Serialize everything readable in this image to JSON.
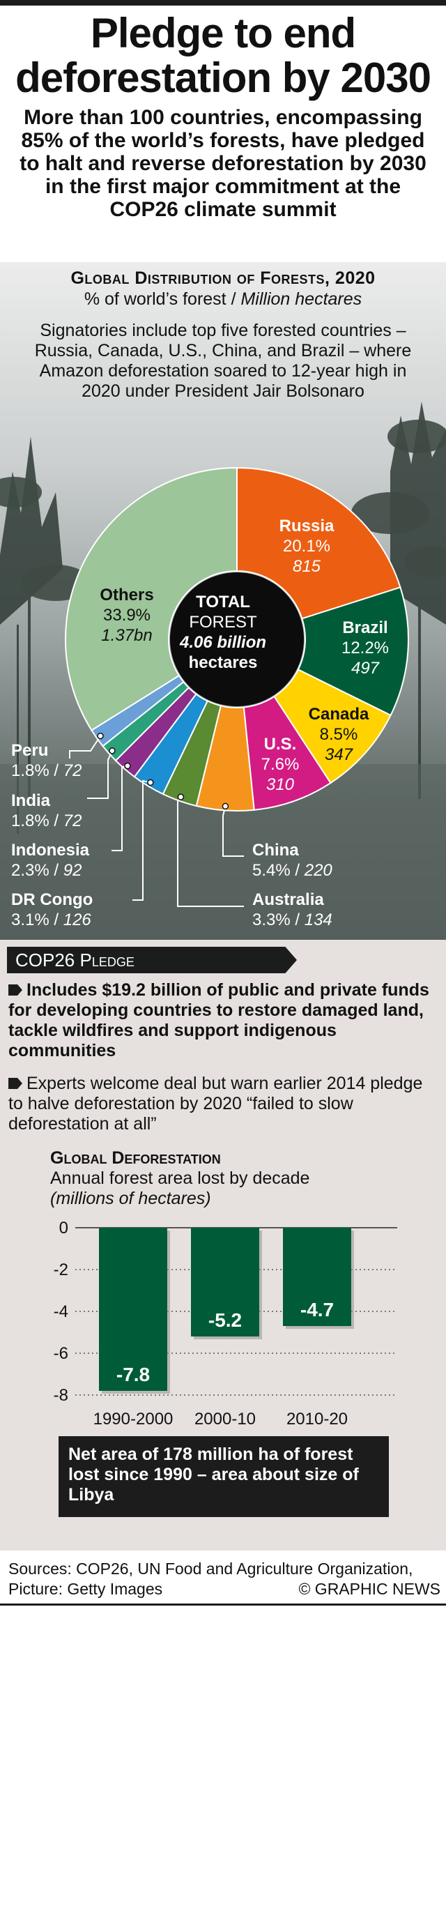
{
  "headline": "Pledge to end deforestation by 2030",
  "intro": "More than 100 countries, encompassing 85% of the world’s forests, have pledged to halt and reverse deforestation by 2030 in the first major commitment at the COP26 climate summit",
  "distribution": {
    "title": "Global Distribution of Forests, 2020",
    "subtitle_pct": "% of world’s forest / ",
    "subtitle_unit": "Million hectares",
    "note": "Signatories include top five forested countries – Russia, Canada, U.S., China, and Brazil – where Amazon deforestation soared to 12-year high in 2020 under President Jair Bolsonaro",
    "center_line1": "TOTAL",
    "center_line2": "FOREST",
    "center_value": "4.06 billion",
    "center_unit": "hectares"
  },
  "chart_data": [
    {
      "type": "pie",
      "title": "Global Distribution of Forests, 2020",
      "unit": "% of world’s forest / Million hectares",
      "total": "4.06 billion hectares",
      "slices": [
        {
          "name": "Russia",
          "pct": 20.1,
          "pct_label": "20.1%",
          "value_label": "815",
          "color": "#ec5f13"
        },
        {
          "name": "Brazil",
          "pct": 12.2,
          "pct_label": "12.2%",
          "value_label": "497",
          "color": "#005c38"
        },
        {
          "name": "Canada",
          "pct": 8.5,
          "pct_label": "8.5%",
          "value_label": "347",
          "color": "#ffd200"
        },
        {
          "name": "U.S.",
          "pct": 7.6,
          "pct_label": "7.6%",
          "value_label": "310",
          "color": "#d21c84"
        },
        {
          "name": "China",
          "pct": 5.4,
          "pct_label": "5.4%",
          "value_label": "220",
          "color": "#f5941d"
        },
        {
          "name": "Australia",
          "pct": 3.3,
          "pct_label": "3.3%",
          "value_label": "134",
          "color": "#5a8a31"
        },
        {
          "name": "DR Congo",
          "pct": 3.1,
          "pct_label": "3.1%",
          "value_label": "126",
          "color": "#1c8ed2"
        },
        {
          "name": "Indonesia",
          "pct": 2.3,
          "pct_label": "2.3%",
          "value_label": "92",
          "color": "#8a2e8a"
        },
        {
          "name": "India",
          "pct": 1.8,
          "pct_label": "1.8%",
          "value_label": "72",
          "color": "#2aa17a"
        },
        {
          "name": "Peru",
          "pct": 1.8,
          "pct_label": "1.8%",
          "value_label": "72",
          "color": "#6a9fd8"
        },
        {
          "name": "Others",
          "pct": 33.9,
          "pct_label": "33.9%",
          "value_label": "1.37bn",
          "color": "#9cc59a"
        }
      ]
    },
    {
      "type": "bar",
      "title": "Global Deforestation",
      "subtitle": "Annual forest area lost by decade",
      "ylabel": "(millions of hectares)",
      "categories": [
        "1990-2000",
        "2000-10",
        "2010-20"
      ],
      "values": [
        -7.8,
        -5.2,
        -4.7
      ],
      "value_labels": [
        "-7.8",
        "-5.2",
        "-4.7"
      ],
      "ylim": [
        -8,
        0
      ],
      "yticks": [
        0,
        -2,
        -4,
        -6,
        -8
      ],
      "ytick_labels": [
        "0",
        "-2",
        "-4",
        "-6",
        "-8"
      ],
      "bar_color": "#005c38"
    }
  ],
  "pledge": {
    "heading": "COP26 Pledge",
    "bullet1": "Includes $19.2 billion of public and private funds for developing countries to restore damaged land, tackle wildfires and support indigenous communities",
    "bullet2": "Experts welcome deal but warn earlier 2014 pledge to halve deforestation by 2020 “failed to slow deforestation at all”"
  },
  "deforestation": {
    "title": "Global Deforestation",
    "subtitle": "Annual forest area lost by decade",
    "unit": "(millions of hectares)",
    "net_note": "Net area of 178 million ha of forest lost since 1990 – area about size of Libya"
  },
  "footer": {
    "sources": "Sources: COP26, UN Food and Agriculture Organization, Picture: Getty Images",
    "credit": "© GRAPHIC NEWS"
  }
}
